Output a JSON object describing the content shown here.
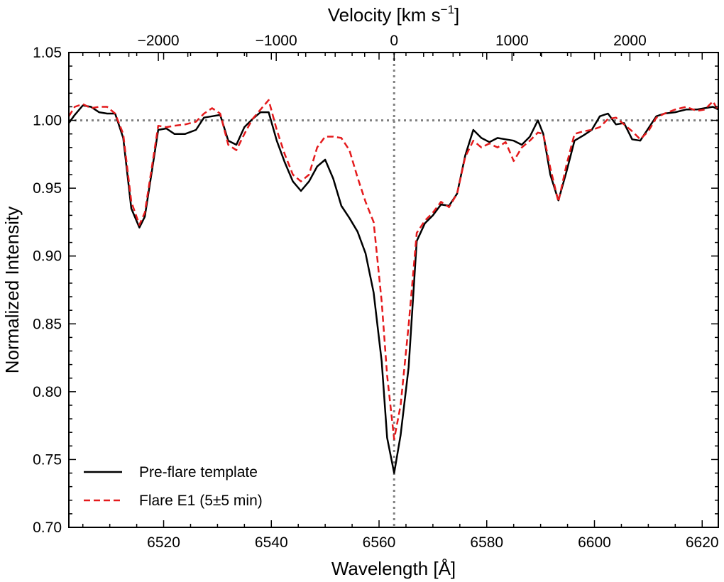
{
  "chart_data": {
    "type": "line",
    "xlabel": "Wavelength [Å]",
    "ylabel": "Normalized Intensity",
    "top_xlabel_prefix": "Velocity [km s",
    "top_xlabel_exp": "−1",
    "top_xlabel_suffix": "]",
    "xlim": [
      6502.4,
      6623.0
    ],
    "ylim": [
      0.7,
      1.05
    ],
    "x_ticks": [
      6520,
      6540,
      6560,
      6580,
      6600,
      6620
    ],
    "y_ticks": [
      0.7,
      0.75,
      0.8,
      0.85,
      0.9,
      0.95,
      1.0,
      1.05
    ],
    "y_tick_labels": [
      "0.70",
      "0.75",
      "0.80",
      "0.85",
      "0.90",
      "0.95",
      "1.00",
      "1.05"
    ],
    "top_axis": {
      "rest_wavelength": 6562.8,
      "ticks": [
        -2000,
        -1000,
        0,
        1000,
        2000
      ],
      "tick_labels": [
        "−2000",
        "−1000",
        "0",
        "1000",
        "2000"
      ]
    },
    "reference_lines": {
      "y": 1.0,
      "x": 6562.8,
      "color": "#808080"
    },
    "legend_position": "lower-left",
    "series": [
      {
        "name": "Pre-flare template",
        "color": "#000000",
        "style": "solid",
        "x": [
          6502.4,
          6503.5,
          6505.0,
          6506.5,
          6508.0,
          6509.5,
          6511.0,
          6512.5,
          6514.0,
          6515.5,
          6516.5,
          6517.8,
          6519.0,
          6520.5,
          6522.0,
          6524.0,
          6526.0,
          6527.5,
          6529.0,
          6530.5,
          6532.0,
          6533.5,
          6535.0,
          6536.5,
          6538.0,
          6539.5,
          6541.0,
          6542.5,
          6544.0,
          6545.5,
          6547.0,
          6548.5,
          6550.0,
          6551.5,
          6553.0,
          6554.5,
          6556.0,
          6557.5,
          6559.0,
          6560.5,
          6561.5,
          6562.8,
          6564.0,
          6565.5,
          6567.0,
          6568.5,
          6570.0,
          6571.5,
          6573.0,
          6574.5,
          6576.0,
          6577.5,
          6579.0,
          6580.5,
          6582.0,
          6583.5,
          6585.0,
          6586.5,
          6588.0,
          6589.5,
          6590.5,
          6591.8,
          6593.3,
          6594.8,
          6596.3,
          6598.0,
          6599.5,
          6601.0,
          6602.5,
          6604.0,
          6605.5,
          6607.0,
          6608.5,
          6610.0,
          6611.5,
          6613.0,
          6615.0,
          6617.0,
          6619.0,
          6620.5,
          6622.0,
          6623.0
        ],
        "y": [
          0.998,
          1.004,
          1.011,
          1.01,
          1.006,
          1.005,
          1.005,
          0.987,
          0.935,
          0.921,
          0.929,
          0.962,
          0.993,
          0.994,
          0.99,
          0.99,
          0.993,
          1.002,
          1.003,
          1.004,
          0.985,
          0.982,
          0.995,
          1.001,
          1.006,
          1.006,
          0.985,
          0.969,
          0.955,
          0.948,
          0.955,
          0.966,
          0.971,
          0.957,
          0.937,
          0.928,
          0.918,
          0.902,
          0.873,
          0.822,
          0.766,
          0.74,
          0.768,
          0.818,
          0.911,
          0.924,
          0.93,
          0.938,
          0.937,
          0.946,
          0.974,
          0.993,
          0.987,
          0.984,
          0.987,
          0.986,
          0.985,
          0.982,
          0.988,
          1.0,
          0.99,
          0.96,
          0.941,
          0.962,
          0.985,
          0.989,
          0.993,
          1.003,
          1.005,
          0.997,
          0.998,
          0.986,
          0.985,
          0.994,
          1.003,
          1.005,
          1.006,
          1.008,
          1.008,
          1.009,
          1.01,
          1.008
        ]
      },
      {
        "name": "Flare E1 (5±5 min)",
        "color": "#e41a1c",
        "style": "dashed",
        "x": [
          6502.4,
          6503.5,
          6505.0,
          6506.5,
          6508.0,
          6509.5,
          6511.0,
          6512.5,
          6514.0,
          6515.5,
          6516.5,
          6517.8,
          6519.0,
          6520.5,
          6522.0,
          6524.0,
          6526.0,
          6527.5,
          6529.0,
          6530.5,
          6532.0,
          6533.5,
          6535.0,
          6536.5,
          6538.0,
          6539.5,
          6541.0,
          6542.5,
          6544.0,
          6545.5,
          6547.0,
          6548.5,
          6550.0,
          6551.5,
          6553.0,
          6554.5,
          6556.0,
          6557.5,
          6559.0,
          6560.5,
          6561.5,
          6562.8,
          6564.0,
          6565.5,
          6567.0,
          6568.5,
          6570.0,
          6571.5,
          6573.0,
          6574.5,
          6576.0,
          6577.5,
          6579.0,
          6580.5,
          6582.0,
          6583.5,
          6585.0,
          6586.5,
          6588.0,
          6589.5,
          6590.5,
          6591.8,
          6593.3,
          6594.8,
          6596.3,
          6598.0,
          6599.5,
          6601.0,
          6602.5,
          6604.0,
          6605.5,
          6607.0,
          6608.5,
          6610.0,
          6611.5,
          6613.0,
          6615.0,
          6617.0,
          6619.0,
          6620.5,
          6622.0,
          6623.0
        ],
        "y": [
          1.003,
          1.01,
          1.012,
          1.009,
          1.01,
          1.01,
          1.005,
          0.99,
          0.94,
          0.923,
          0.932,
          0.965,
          0.996,
          0.995,
          0.996,
          0.997,
          0.999,
          1.005,
          1.009,
          1.005,
          0.982,
          0.978,
          0.99,
          1.001,
          1.008,
          1.015,
          0.993,
          0.975,
          0.96,
          0.955,
          0.96,
          0.98,
          0.988,
          0.988,
          0.987,
          0.978,
          0.958,
          0.94,
          0.925,
          0.866,
          0.812,
          0.765,
          0.79,
          0.849,
          0.917,
          0.926,
          0.932,
          0.94,
          0.936,
          0.946,
          0.973,
          0.985,
          0.98,
          0.983,
          0.98,
          0.984,
          0.97,
          0.98,
          0.985,
          0.991,
          0.99,
          0.965,
          0.94,
          0.967,
          0.99,
          0.992,
          0.993,
          0.995,
          1.001,
          1.002,
          0.997,
          0.992,
          0.986,
          0.992,
          1.002,
          1.005,
          1.008,
          1.01,
          1.007,
          1.008,
          1.014,
          1.007
        ]
      }
    ]
  }
}
